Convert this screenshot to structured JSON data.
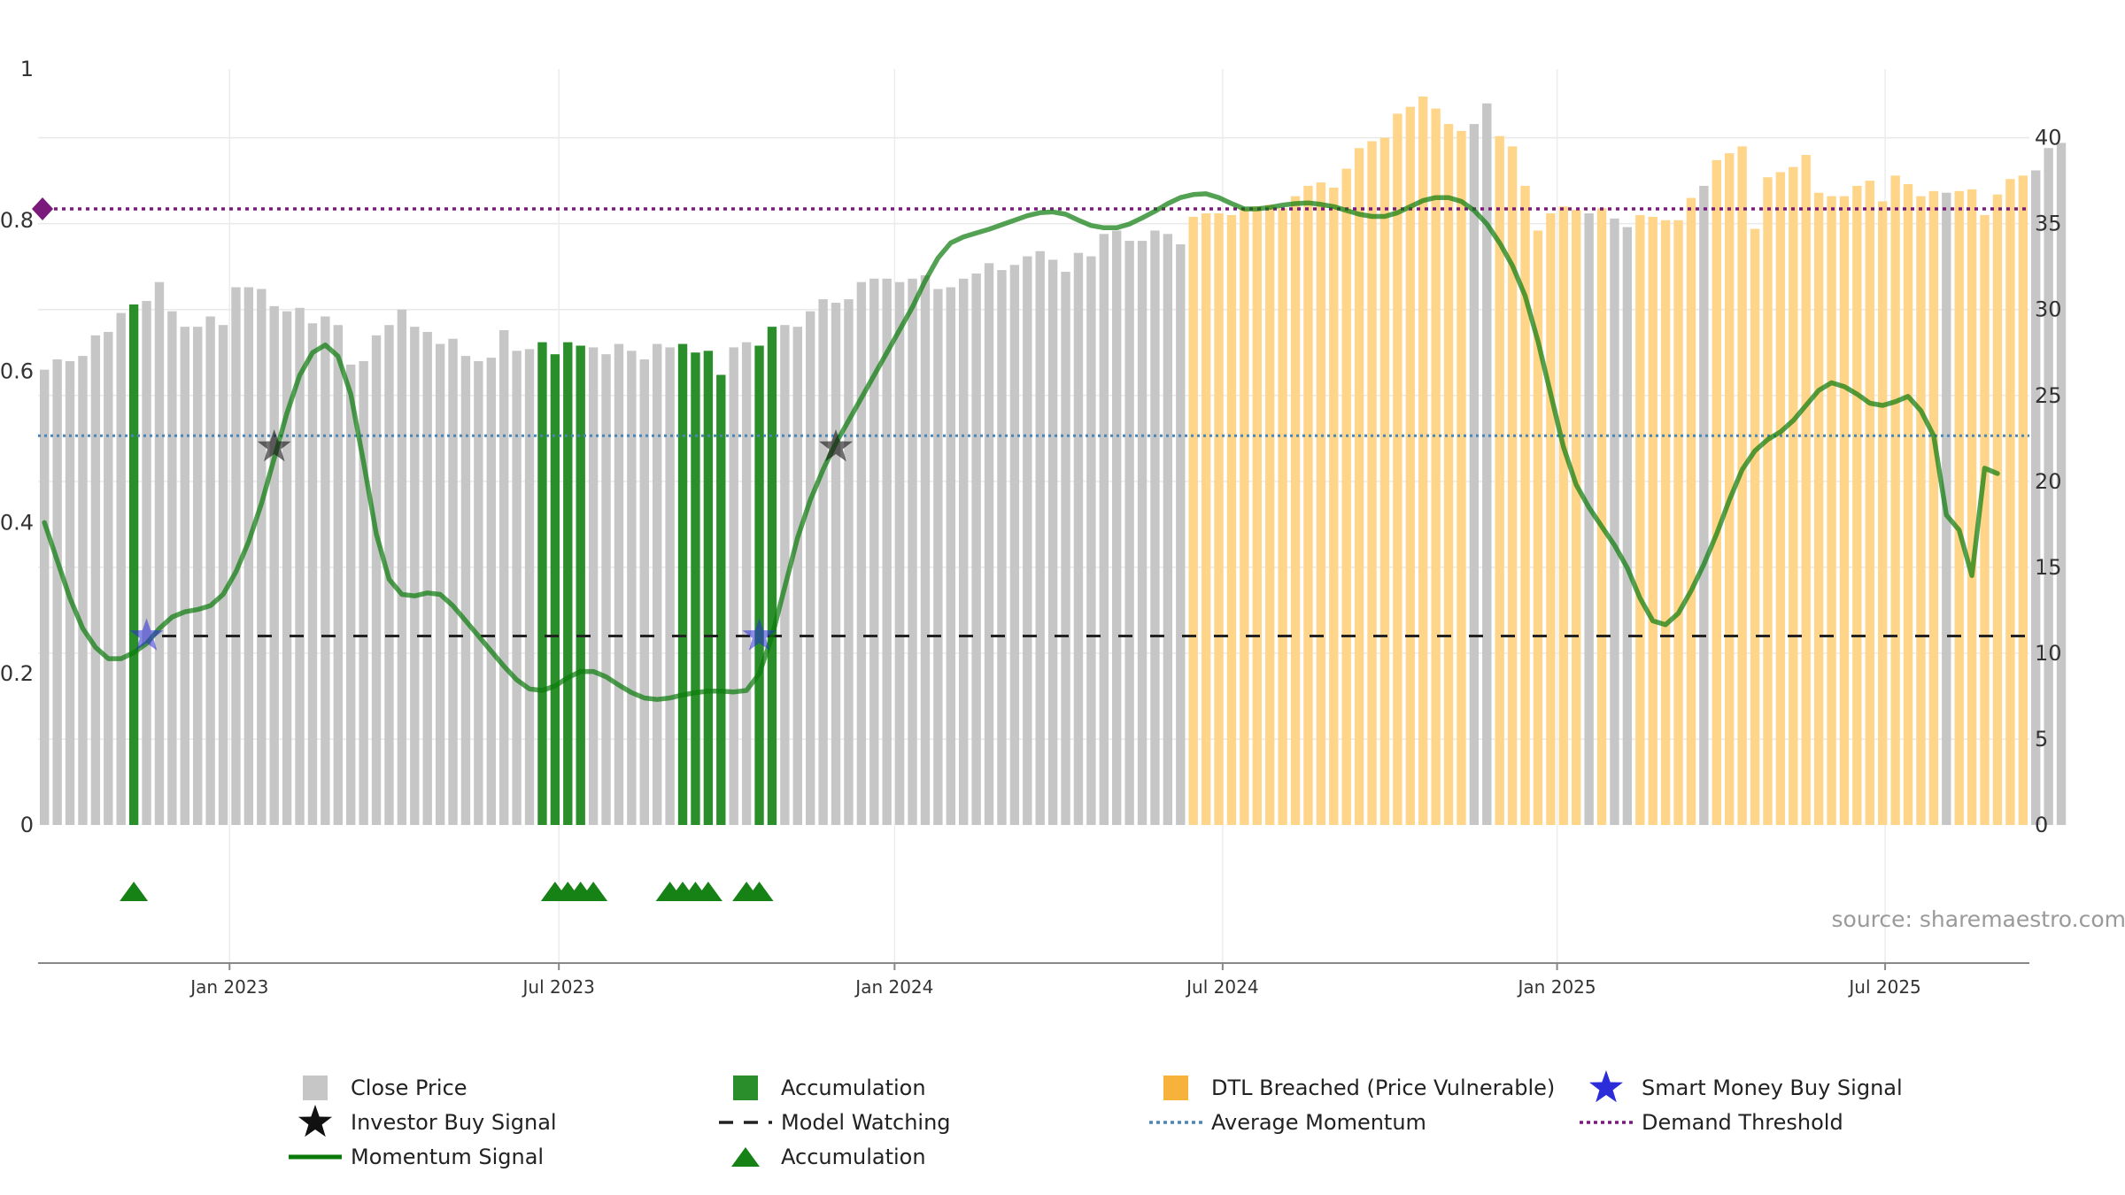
{
  "colors": {
    "close": "#c6c6c6",
    "accum": "#2a8f2a",
    "dtl": "#ffd58a",
    "momentum": "#0a7a0a",
    "avg": "#4a86b5",
    "demand": "#7a1a7a",
    "watch": "#222222",
    "triangle": "#168216",
    "smart": "#2c2cd8",
    "investor": "#111111"
  },
  "chart_data": {
    "type": "bar",
    "title": "",
    "left_axis": {
      "ylim": [
        0,
        1
      ],
      "ticks": [
        "0",
        "0.2",
        "0.4",
        "0.6",
        "0.8",
        "1"
      ]
    },
    "right_axis": {
      "ylim": [
        0,
        44
      ],
      "ticks": [
        "0",
        "5",
        "10",
        "15",
        "20",
        "25",
        "30",
        "35",
        "40"
      ]
    },
    "x_range": [
      0,
      156
    ],
    "x_ticks": [
      {
        "x": 14.5,
        "label": "Jan 2023"
      },
      {
        "x": 40.3,
        "label": "Jul 2023"
      },
      {
        "x": 66.6,
        "label": "Jan 2024"
      },
      {
        "x": 92.3,
        "label": "Jul 2024"
      },
      {
        "x": 118.5,
        "label": "Jan 2025"
      },
      {
        "x": 144.2,
        "label": "Jul 2025"
      }
    ],
    "close_values": [
      26.5,
      27.1,
      27.0,
      27.3,
      28.5,
      28.7,
      29.8,
      30.3,
      30.5,
      31.6,
      29.9,
      29.0,
      29.0,
      29.6,
      29.1,
      31.3,
      31.3,
      31.2,
      30.2,
      29.9,
      30.1,
      29.2,
      29.6,
      29.1,
      26.8,
      27.0,
      28.5,
      29.1,
      30.0,
      29.0,
      28.7,
      28.0,
      28.3,
      27.3,
      27.0,
      27.2,
      28.8,
      27.6,
      27.7,
      28.1,
      27.4,
      28.1,
      27.9,
      27.8,
      27.4,
      28.0,
      27.6,
      27.1,
      28.0,
      27.8,
      28.0,
      27.5,
      27.6,
      26.2,
      27.8,
      28.1,
      27.9,
      29.0,
      29.1,
      29.0,
      29.9,
      30.6,
      30.4,
      30.6,
      31.6,
      31.8,
      31.8,
      31.6,
      31.8,
      32.0,
      31.2,
      31.3,
      31.8,
      32.1,
      32.7,
      32.3,
      32.6,
      33.1,
      33.4,
      32.9,
      32.2,
      33.3,
      33.1,
      34.4,
      34.6,
      34.0,
      34.0,
      34.6,
      34.4,
      33.8,
      35.4,
      35.6,
      35.6,
      35.5,
      35.9,
      36.0,
      36.1,
      35.9,
      36.6,
      37.2,
      37.4,
      37.1,
      38.2,
      39.4,
      39.8,
      40.0,
      41.4,
      41.8,
      42.4,
      41.7,
      40.8,
      40.4,
      40.8,
      42.0,
      40.1,
      39.5,
      37.2,
      34.6,
      35.6,
      36.0,
      35.8,
      35.6,
      35.9,
      35.3,
      34.8,
      35.5,
      35.4,
      35.2,
      35.2,
      36.5,
      37.2,
      38.7,
      39.1,
      39.5,
      34.7,
      37.7,
      38.0,
      38.3,
      39.0,
      36.8,
      36.6,
      36.6,
      37.2,
      37.5,
      36.3,
      37.8,
      37.3,
      36.6,
      36.9,
      36.8,
      36.9,
      37.0,
      35.5,
      36.7,
      37.6,
      37.8,
      38.1,
      39.4,
      39.7
    ],
    "bar_category_codes": "CCCCCCCACCCCCCCCCCCCCCCCCCCCCCCCCCCCCCCAAAACCCCCCCAAAACCAACCCCCCCCCCCCCCCCCCCCCCCCCCCCCCCCDDDDDDDDDDDDDDDDDDDDDDCCDDDDDDDCDCCDDDDDCDDDDDDDDDDDDDDDDDDCDDDDDD",
    "bar_category_legend": {
      "C": "Close Price",
      "A": "Accumulation",
      "D": "DTL Breached (Price Vulnerable)"
    },
    "momentum_signal": [
      [
        0,
        0.4
      ],
      [
        1,
        0.35
      ],
      [
        2,
        0.3
      ],
      [
        3,
        0.26
      ],
      [
        4,
        0.235
      ],
      [
        5,
        0.22
      ],
      [
        6,
        0.22
      ],
      [
        7,
        0.228
      ],
      [
        8,
        0.24
      ],
      [
        9,
        0.26
      ],
      [
        10,
        0.275
      ],
      [
        11,
        0.282
      ],
      [
        12,
        0.285
      ],
      [
        13,
        0.29
      ],
      [
        14,
        0.305
      ],
      [
        15,
        0.335
      ],
      [
        16,
        0.375
      ],
      [
        17,
        0.425
      ],
      [
        18,
        0.485
      ],
      [
        19,
        0.545
      ],
      [
        20,
        0.595
      ],
      [
        21,
        0.625
      ],
      [
        22,
        0.635
      ],
      [
        23,
        0.62
      ],
      [
        24,
        0.57
      ],
      [
        25,
        0.48
      ],
      [
        26,
        0.385
      ],
      [
        27,
        0.325
      ],
      [
        28,
        0.305
      ],
      [
        29,
        0.303
      ],
      [
        30,
        0.307
      ],
      [
        31,
        0.305
      ],
      [
        32,
        0.29
      ],
      [
        33,
        0.27
      ],
      [
        34,
        0.25
      ],
      [
        35,
        0.23
      ],
      [
        36,
        0.21
      ],
      [
        37,
        0.192
      ],
      [
        38,
        0.18
      ],
      [
        39,
        0.178
      ],
      [
        40,
        0.184
      ],
      [
        41,
        0.195
      ],
      [
        42,
        0.203
      ],
      [
        43,
        0.203
      ],
      [
        44,
        0.196
      ],
      [
        45,
        0.185
      ],
      [
        46,
        0.175
      ],
      [
        47,
        0.168
      ],
      [
        48,
        0.166
      ],
      [
        49,
        0.168
      ],
      [
        50,
        0.172
      ],
      [
        51,
        0.175
      ],
      [
        52,
        0.177
      ],
      [
        53,
        0.177
      ],
      [
        54,
        0.176
      ],
      [
        55,
        0.178
      ],
      [
        56,
        0.2
      ],
      [
        57,
        0.25
      ],
      [
        58,
        0.315
      ],
      [
        59,
        0.38
      ],
      [
        60,
        0.43
      ],
      [
        61,
        0.47
      ],
      [
        62,
        0.505
      ],
      [
        63,
        0.535
      ],
      [
        64,
        0.565
      ],
      [
        65,
        0.595
      ],
      [
        66,
        0.625
      ],
      [
        67,
        0.655
      ],
      [
        68,
        0.685
      ],
      [
        69,
        0.72
      ],
      [
        70,
        0.75
      ],
      [
        71,
        0.77
      ],
      [
        72,
        0.778
      ],
      [
        73,
        0.783
      ],
      [
        74,
        0.788
      ],
      [
        75,
        0.794
      ],
      [
        76,
        0.8
      ],
      [
        77,
        0.806
      ],
      [
        78,
        0.81
      ],
      [
        79,
        0.811
      ],
      [
        80,
        0.808
      ],
      [
        81,
        0.8
      ],
      [
        82,
        0.793
      ],
      [
        83,
        0.79
      ],
      [
        84,
        0.79
      ],
      [
        85,
        0.795
      ],
      [
        86,
        0.803
      ],
      [
        87,
        0.812
      ],
      [
        88,
        0.822
      ],
      [
        89,
        0.83
      ],
      [
        90,
        0.834
      ],
      [
        91,
        0.835
      ],
      [
        92,
        0.83
      ],
      [
        93,
        0.822
      ],
      [
        94,
        0.815
      ],
      [
        95,
        0.815
      ],
      [
        96,
        0.817
      ],
      [
        97,
        0.82
      ],
      [
        98,
        0.822
      ],
      [
        99,
        0.823
      ],
      [
        100,
        0.821
      ],
      [
        101,
        0.818
      ],
      [
        102,
        0.813
      ],
      [
        103,
        0.808
      ],
      [
        104,
        0.805
      ],
      [
        105,
        0.805
      ],
      [
        106,
        0.81
      ],
      [
        107,
        0.818
      ],
      [
        108,
        0.826
      ],
      [
        109,
        0.83
      ],
      [
        110,
        0.83
      ],
      [
        111,
        0.825
      ],
      [
        112,
        0.813
      ],
      [
        113,
        0.795
      ],
      [
        114,
        0.77
      ],
      [
        115,
        0.74
      ],
      [
        116,
        0.7
      ],
      [
        117,
        0.64
      ],
      [
        118,
        0.57
      ],
      [
        119,
        0.5
      ],
      [
        120,
        0.45
      ],
      [
        121,
        0.42
      ],
      [
        122,
        0.395
      ],
      [
        123,
        0.37
      ],
      [
        124,
        0.34
      ],
      [
        125,
        0.3
      ],
      [
        126,
        0.27
      ],
      [
        127,
        0.265
      ],
      [
        128,
        0.28
      ],
      [
        129,
        0.31
      ],
      [
        130,
        0.345
      ],
      [
        131,
        0.385
      ],
      [
        132,
        0.43
      ],
      [
        133,
        0.47
      ],
      [
        134,
        0.495
      ],
      [
        135,
        0.51
      ],
      [
        136,
        0.52
      ],
      [
        137,
        0.535
      ],
      [
        138,
        0.555
      ],
      [
        139,
        0.575
      ],
      [
        140,
        0.585
      ],
      [
        141,
        0.58
      ],
      [
        142,
        0.57
      ],
      [
        143,
        0.558
      ],
      [
        144,
        0.555
      ],
      [
        145,
        0.56
      ],
      [
        146,
        0.567
      ],
      [
        147,
        0.548
      ],
      [
        148,
        0.515
      ],
      [
        149,
        0.41
      ],
      [
        150,
        0.39
      ],
      [
        151,
        0.33
      ],
      [
        152,
        0.472
      ],
      [
        153,
        0.465
      ]
    ],
    "model_watching_level": 0.25,
    "average_momentum_level": 0.515,
    "demand_threshold_level": 0.815,
    "accumulation_triangles_x": [
      7,
      40,
      41,
      42,
      43,
      49,
      50,
      51,
      52,
      55,
      56
    ],
    "smart_money_buy_signals": [
      [
        8,
        0.25
      ],
      [
        56,
        0.25
      ]
    ],
    "investor_buy_signals": [
      [
        18,
        0.5
      ],
      [
        62,
        0.5
      ]
    ],
    "legend": [
      "Close Price",
      "Accumulation",
      "DTL Breached (Price Vulnerable)",
      "Smart Money Buy Signal",
      "Investor Buy Signal",
      "Model Watching",
      "Average Momentum",
      "Demand Threshold",
      "Momentum Signal",
      "Accumulation"
    ],
    "source_note": "source: sharemaestro.com"
  }
}
